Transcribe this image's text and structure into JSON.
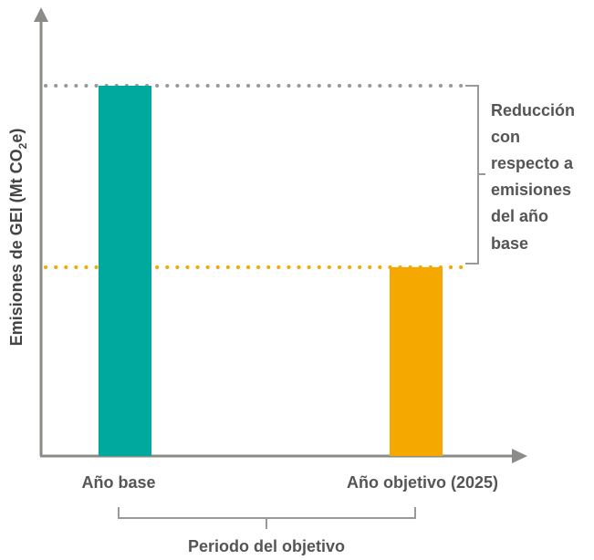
{
  "chart_data": {
    "type": "bar",
    "categories": [
      "Año base",
      "Año objetivo (2025)"
    ],
    "values": [
      100,
      51
    ],
    "colors": [
      "#00a99d",
      "#f5a800"
    ],
    "ylabel_main": "Emisiones de GEI (Mt CO",
    "ylabel_sub": "2",
    "ylabel_end": "e)",
    "reference_lines": [
      {
        "value": 100,
        "color": "#999999",
        "style": "dotted"
      },
      {
        "value": 51,
        "color": "#f5a800",
        "style": "dotted"
      }
    ],
    "annotation_lines": [
      "Reducción",
      "con",
      "respecto a",
      "emisiones",
      "del año",
      "base"
    ],
    "period_label": "Periodo del objetivo",
    "axis_color": "#8a8c85",
    "bracket_color": "#999999"
  }
}
